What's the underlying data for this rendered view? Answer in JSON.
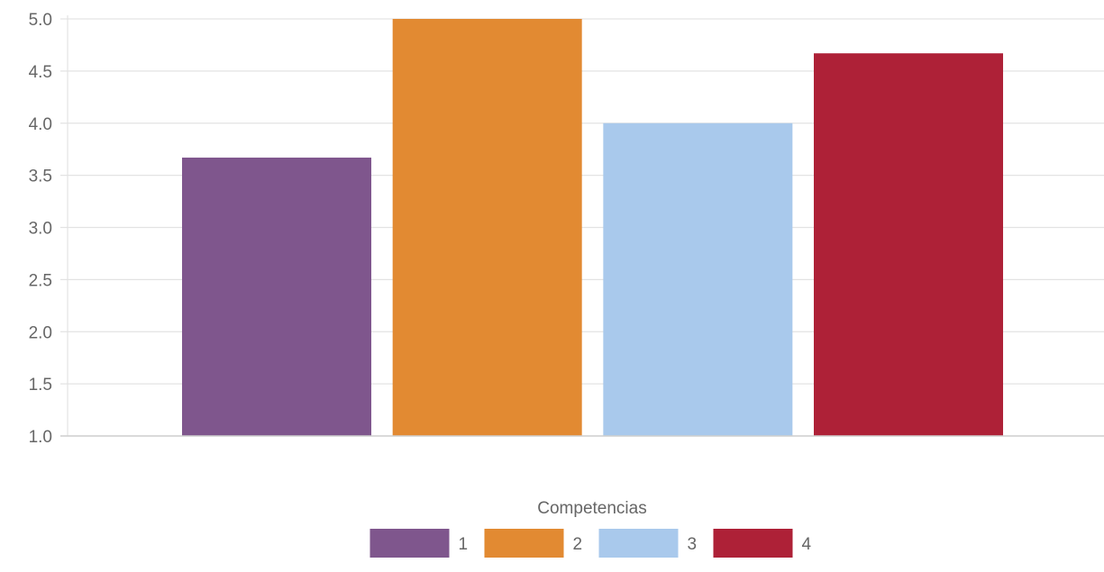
{
  "chart_data": {
    "type": "bar",
    "xlabel": "Competencias",
    "ylabel": "",
    "ylim": [
      1.0,
      5.0
    ],
    "yticks": [
      "1.0",
      "1.5",
      "2.0",
      "2.5",
      "3.0",
      "3.5",
      "4.0",
      "4.5",
      "5.0"
    ],
    "grid": true,
    "legend_position": "bottom",
    "series": [
      {
        "name": "1",
        "value": 3.67,
        "color": "#7f568d"
      },
      {
        "name": "2",
        "value": 5.0,
        "color": "#e28a32"
      },
      {
        "name": "3",
        "value": 4.0,
        "color": "#a9c9ec"
      },
      {
        "name": "4",
        "value": 4.67,
        "color": "#ae2137"
      }
    ]
  }
}
